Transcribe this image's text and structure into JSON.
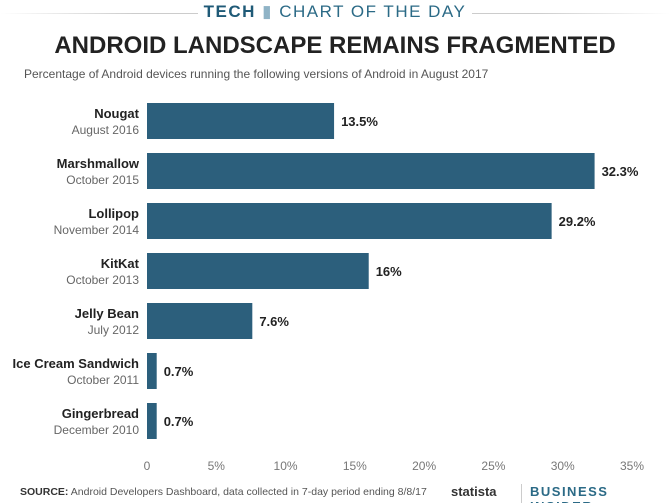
{
  "header": {
    "section": "TECH",
    "label": "CHART OF THE DAY"
  },
  "chart_data": {
    "type": "bar",
    "orientation": "horizontal",
    "title": "ANDROID LANDSCAPE REMAINS FRAGMENTED",
    "subtitle": "Percentage of Android devices running the following versions of Android in August 2017",
    "categories": [
      "Nougat",
      "Marshmallow",
      "Lollipop",
      "KitKat",
      "Jelly Bean",
      "Ice Cream Sandwich",
      "Gingerbread"
    ],
    "release_dates": [
      "August 2016",
      "October 2015",
      "November 2014",
      "October 2013",
      "July 2012",
      "October 2011",
      "December 2010"
    ],
    "values": [
      13.5,
      32.3,
      29.2,
      16,
      7.6,
      0.7,
      0.7
    ],
    "value_labels": [
      "13.5%",
      "32.3%",
      "29.2%",
      "16%",
      "7.6%",
      "0.7%",
      "0.7%"
    ],
    "xlim": [
      0,
      35
    ],
    "xticks": [
      "0",
      "5%",
      "10%",
      "15%",
      "20%",
      "25%",
      "30%",
      "35%"
    ],
    "bar_color": "#2c5f7c",
    "grid": false
  },
  "footer": {
    "source_label": "SOURCE:",
    "source_text": " Android Developers Dashboard, data collected in 7-day period ending 8/8/17",
    "logo1": "statista",
    "logo2": "BUSINESS INSIDER"
  }
}
